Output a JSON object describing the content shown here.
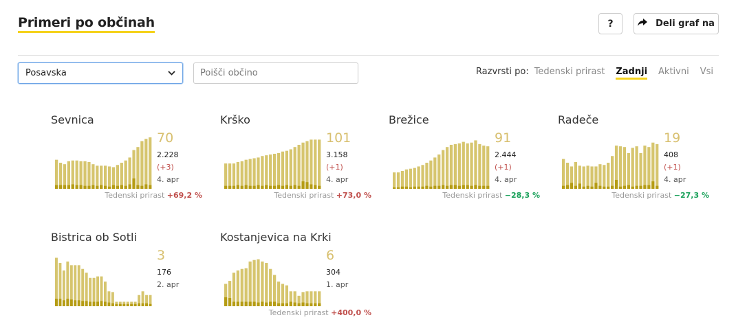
{
  "header": {
    "title": "Primeri po občinah",
    "help_label": "?",
    "share_label": "Deli graf na"
  },
  "controls": {
    "region_selected": "Posavska",
    "search_placeholder": "Poišči občino",
    "sort_label": "Razvrsti po:",
    "sort_options": [
      "Tedenski prirast",
      "Zadnji",
      "Aktivni",
      "Vsi"
    ],
    "sort_active": "Zadnji"
  },
  "colors": {
    "accent": "#f5d21c",
    "bar_light": "#d6c56e",
    "bar_dark": "#b59c14",
    "up": "#c0504d",
    "down": "#1aa15a"
  },
  "cards": [
    {
      "name": "Sevnica",
      "active": "70",
      "total": "2.228",
      "delta": "(+3)",
      "date": "4. apr",
      "growth_label": "Tedenski prirast",
      "growth_value": "+69,2 %",
      "growth_dir": "up",
      "bars": [
        39,
        35,
        33,
        37,
        38,
        38,
        37,
        37,
        36,
        33,
        31,
        31,
        31,
        30,
        29,
        32,
        35,
        38,
        42,
        52,
        56,
        64,
        67,
        69
      ],
      "dark": [
        5,
        5,
        5,
        5,
        6,
        5,
        5,
        4,
        4,
        5,
        4,
        5,
        4,
        3,
        5,
        4,
        5,
        4,
        6,
        14,
        5,
        4,
        6,
        5
      ]
    },
    {
      "name": "Krško",
      "active": "101",
      "total": "3.158",
      "delta": "(+1)",
      "date": "4. apr",
      "growth_label": "Tedenski prirast",
      "growth_value": "+73,0 %",
      "growth_dir": "up",
      "bars": [
        34,
        34,
        34,
        36,
        37,
        39,
        40,
        41,
        42,
        44,
        45,
        46,
        47,
        48,
        50,
        51,
        53,
        56,
        59,
        62,
        64,
        66,
        66,
        66
      ],
      "dark": [
        4,
        4,
        4,
        5,
        4,
        5,
        4,
        4,
        5,
        4,
        5,
        4,
        4,
        5,
        4,
        5,
        4,
        5,
        4,
        10,
        9,
        6,
        5,
        4
      ]
    },
    {
      "name": "Brežice",
      "active": "91",
      "total": "2.444",
      "delta": "(+1)",
      "date": "4. apr",
      "growth_label": "Tedenski prirast",
      "growth_value": "−28,3 %",
      "growth_dir": "down",
      "bars": [
        22,
        22,
        24,
        26,
        27,
        28,
        30,
        32,
        35,
        38,
        42,
        46,
        52,
        56,
        59,
        60,
        61,
        63,
        61,
        62,
        65,
        60,
        58,
        57
      ],
      "dark": [
        2,
        2,
        3,
        3,
        2,
        3,
        3,
        3,
        4,
        3,
        4,
        4,
        5,
        4,
        5,
        5,
        4,
        5,
        5,
        4,
        5,
        4,
        4,
        4
      ]
    },
    {
      "name": "Radeče",
      "active": "19",
      "total": "408",
      "delta": "(+1)",
      "date": "4. apr",
      "growth_label": "Tedenski prirast",
      "growth_value": "−27,3 %",
      "growth_dir": "down",
      "bars": [
        40,
        35,
        30,
        36,
        31,
        30,
        31,
        30,
        30,
        33,
        32,
        35,
        44,
        58,
        57,
        56,
        48,
        55,
        57,
        48,
        58,
        56,
        62,
        60
      ],
      "dark": [
        4,
        5,
        8,
        4,
        7,
        3,
        4,
        3,
        8,
        4,
        3,
        3,
        4,
        12,
        3,
        4,
        5,
        3,
        4,
        4,
        5,
        5,
        10,
        4
      ]
    },
    {
      "name": "Bistrica ob Sotli",
      "active": "3",
      "total": "176",
      "delta": "",
      "date": "2. apr",
      "growth_label": "",
      "growth_value": "",
      "growth_dir": "",
      "bars": [
        65,
        58,
        48,
        60,
        55,
        55,
        55,
        50,
        45,
        38,
        38,
        40,
        40,
        33,
        20,
        19,
        6,
        6,
        6,
        6,
        6,
        6,
        15,
        20,
        15,
        15
      ],
      "dark": [
        10,
        10,
        8,
        10,
        9,
        8,
        8,
        7,
        7,
        6,
        6,
        6,
        7,
        6,
        5,
        4,
        3,
        3,
        3,
        3,
        3,
        3,
        4,
        4,
        4,
        3
      ]
    },
    {
      "name": "Kostanjevica na Krki",
      "active": "6",
      "total": "304",
      "delta": "",
      "date": "1. apr",
      "growth_label": "Tedenski prirast",
      "growth_value": "+400,0 %",
      "growth_dir": "up",
      "bars": [
        30,
        34,
        45,
        48,
        50,
        51,
        60,
        62,
        63,
        60,
        58,
        50,
        42,
        33,
        30,
        28,
        20,
        20,
        14,
        19,
        20,
        20,
        20,
        20
      ],
      "dark": [
        12,
        11,
        6,
        6,
        6,
        6,
        6,
        6,
        5,
        6,
        5,
        6,
        6,
        4,
        4,
        4,
        6,
        5,
        4,
        5,
        4,
        4,
        4,
        4
      ]
    }
  ]
}
